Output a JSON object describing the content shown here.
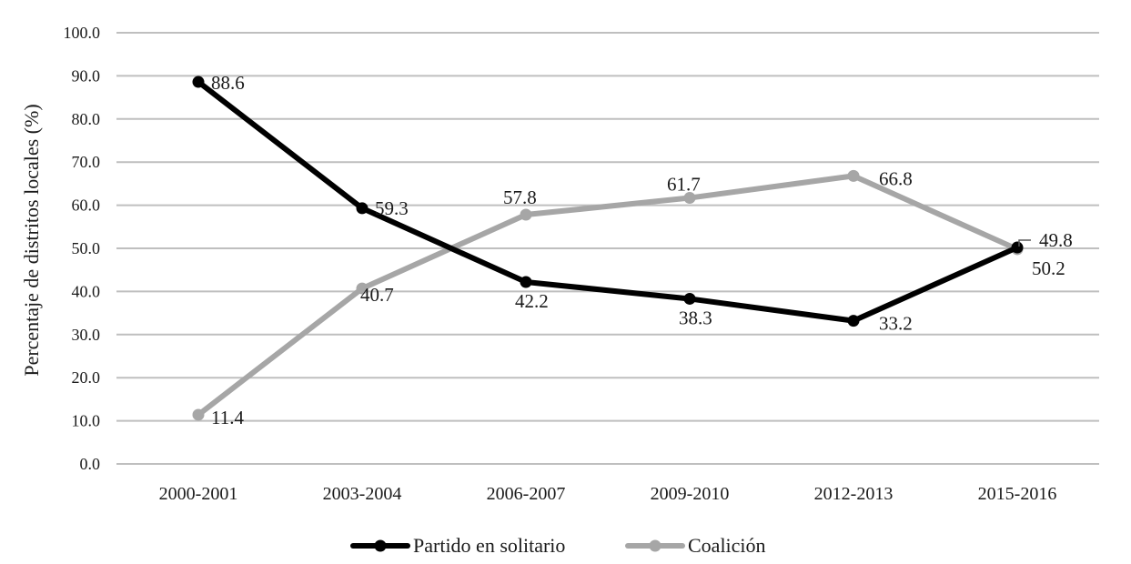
{
  "chart_data": {
    "type": "line",
    "title": "",
    "xlabel": "",
    "ylabel": "Percentaje de distritos locales (%)",
    "categories": [
      "2000-2001",
      "2003-2004",
      "2006-2007",
      "2009-2010",
      "2012-2013",
      "2015-2016"
    ],
    "ylim": [
      0,
      100
    ],
    "yticks": [
      "0.0",
      "10.0",
      "20.0",
      "30.0",
      "40.0",
      "50.0",
      "60.0",
      "70.0",
      "80.0",
      "90.0",
      "100.0"
    ],
    "grid": true,
    "legend_position": "bottom",
    "series": [
      {
        "name": "Partido en solitario",
        "color": "#000000",
        "values": [
          88.6,
          59.3,
          42.2,
          38.3,
          33.2,
          50.2
        ],
        "labels": [
          "88.6",
          "59.3",
          "42.2",
          "38.3",
          "33.2",
          "50.2"
        ]
      },
      {
        "name": "Coalición",
        "color": "#a6a6a6",
        "values": [
          11.4,
          40.7,
          57.8,
          61.7,
          66.8,
          49.8
        ],
        "labels": [
          "11.4",
          "40.7",
          "57.8",
          "61.7",
          "66.8",
          "49.8"
        ]
      }
    ]
  }
}
